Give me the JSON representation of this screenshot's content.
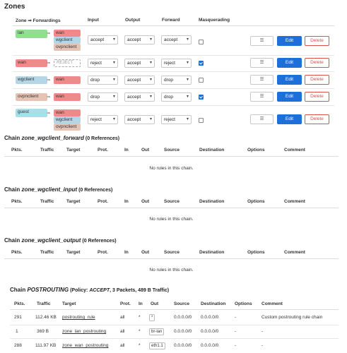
{
  "zones": {
    "title": "Zones",
    "headers": {
      "zone_fwd": "Zone ⇒ Forwardings",
      "input": "Input",
      "output": "Output",
      "forward": "Forward",
      "masq": "Masquerading"
    },
    "arrow": "⇒",
    "rows": [
      {
        "name": "lan",
        "targets": [
          "wan",
          "wgclient",
          "ovpnclient"
        ],
        "input": "accept",
        "output": "accept",
        "forward": "accept",
        "masq": false
      },
      {
        "name": "wan",
        "targets": [
          "REJECT"
        ],
        "input": "reject",
        "output": "accept",
        "forward": "reject",
        "masq": true
      },
      {
        "name": "wgclient",
        "targets": [
          "wan"
        ],
        "input": "drop",
        "output": "accept",
        "forward": "drop",
        "masq": false
      },
      {
        "name": "ovpnclient",
        "targets": [
          "wan"
        ],
        "input": "drop",
        "output": "accept",
        "forward": "drop",
        "masq": true
      },
      {
        "name": "guest",
        "targets": [
          "wan",
          "wgclient",
          "ovpnclient"
        ],
        "input": "reject",
        "output": "accept",
        "forward": "reject",
        "masq": false
      }
    ],
    "buttons": {
      "menu": "☰",
      "edit": "Edit",
      "delete": "Delete"
    }
  },
  "colors": {
    "lan": "#90e090",
    "wan": "#f08a8a",
    "wgclient": "#b5d7e5",
    "ovpnclient": "#e5c4b5",
    "guest": "#a8e0ea",
    "edit": "#1e6fd9",
    "delete": "#d9534f"
  },
  "chains": [
    {
      "prefix": "Chain ",
      "name": "zone_wgclient_forward",
      "suffix": " (0 References)",
      "empty": "No rules in this chain."
    },
    {
      "prefix": "Chain ",
      "name": "zone_wgclient_input",
      "suffix": " (0 References)",
      "empty": "No rules in this chain."
    },
    {
      "prefix": "Chain ",
      "name": "zone_wgclient_output",
      "suffix": " (0 References)",
      "empty": "No rules in this chain."
    }
  ],
  "chain_headers": [
    "Pkts.",
    "Traffic",
    "Target",
    "Prot.",
    "In",
    "Out",
    "Source",
    "Destination",
    "Options",
    "Comment"
  ],
  "postrouting": {
    "prefix": "Chain ",
    "name": "POSTROUTING",
    "policy_label": " (Policy: ",
    "policy": "ACCEPT",
    "stats": ", 3 Packets, 489 B Traffic)",
    "headers": [
      "Pkts.",
      "Traffic",
      "Target",
      "Prot.",
      "In",
      "Out",
      "Source",
      "Destination",
      "Options",
      "Comment"
    ],
    "rows": [
      {
        "pkts": "291",
        "traffic": "112.46 KB",
        "target": "postrouting_rule",
        "prot": "all",
        "in": "*",
        "out": "*",
        "source": "0.0.0.0/0",
        "dest": "0.0.0.0/0",
        "options": "-",
        "comment": "Custom postrouting rule chain"
      },
      {
        "pkts": "1",
        "traffic": "369 B",
        "target": "zone_lan_postrouting",
        "prot": "all",
        "in": "*",
        "out": "br-lan",
        "source": "0.0.0.0/0",
        "dest": "0.0.0.0/0",
        "options": "-",
        "comment": "-"
      },
      {
        "pkts": "288",
        "traffic": "111.97 KB",
        "target": "zone_wan_postrouting",
        "prot": "all",
        "in": "*",
        "out": "eth1.1",
        "source": "0.0.0.0/0",
        "dest": "0.0.0.0/0",
        "options": "-",
        "comment": "-"
      }
    ]
  }
}
